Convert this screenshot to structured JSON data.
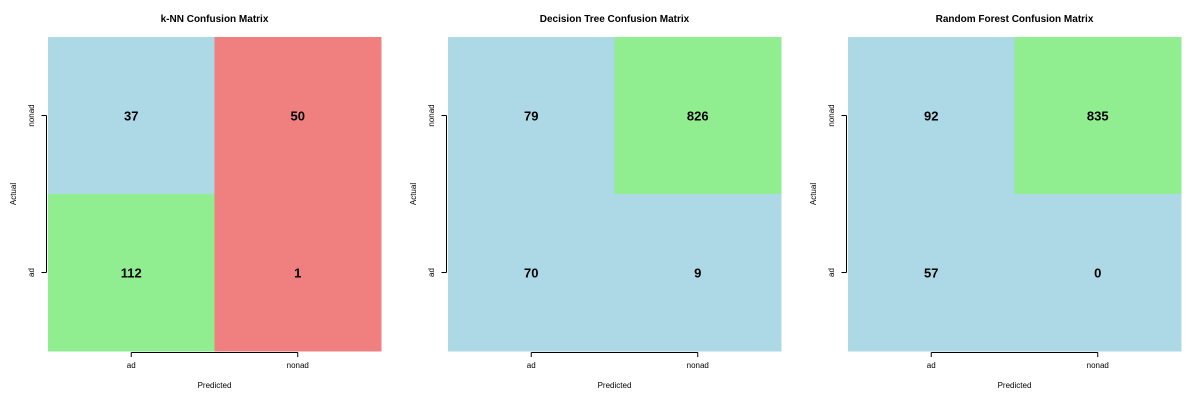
{
  "chart_data": [
    {
      "type": "heatmap",
      "title": "k-NN Confusion Matrix",
      "xlabel": "Predicted",
      "ylabel": "Actual",
      "x_categories": [
        "ad",
        "nonad"
      ],
      "y_categories": [
        "ad",
        "nonad"
      ],
      "cells": [
        {
          "actual": "nonad",
          "predicted": "ad",
          "value": 37,
          "color": "#add8e6"
        },
        {
          "actual": "nonad",
          "predicted": "nonad",
          "value": 50,
          "color": "#f08080"
        },
        {
          "actual": "ad",
          "predicted": "ad",
          "value": 112,
          "color": "#90ee90"
        },
        {
          "actual": "ad",
          "predicted": "nonad",
          "value": 1,
          "color": "#f08080"
        }
      ]
    },
    {
      "type": "heatmap",
      "title": "Decision Tree Confusion Matrix",
      "xlabel": "Predicted",
      "ylabel": "Actual",
      "x_categories": [
        "ad",
        "nonad"
      ],
      "y_categories": [
        "ad",
        "nonad"
      ],
      "cells": [
        {
          "actual": "nonad",
          "predicted": "ad",
          "value": 79,
          "color": "#add8e6"
        },
        {
          "actual": "nonad",
          "predicted": "nonad",
          "value": 826,
          "color": "#90ee90"
        },
        {
          "actual": "ad",
          "predicted": "ad",
          "value": 70,
          "color": "#add8e6"
        },
        {
          "actual": "ad",
          "predicted": "nonad",
          "value": 9,
          "color": "#add8e6"
        }
      ]
    },
    {
      "type": "heatmap",
      "title": "Random Forest Confusion Matrix",
      "xlabel": "Predicted",
      "ylabel": "Actual",
      "x_categories": [
        "ad",
        "nonad"
      ],
      "y_categories": [
        "ad",
        "nonad"
      ],
      "cells": [
        {
          "actual": "nonad",
          "predicted": "ad",
          "value": 92,
          "color": "#add8e6"
        },
        {
          "actual": "nonad",
          "predicted": "nonad",
          "value": 835,
          "color": "#90ee90"
        },
        {
          "actual": "ad",
          "predicted": "ad",
          "value": 57,
          "color": "#add8e6"
        },
        {
          "actual": "ad",
          "predicted": "nonad",
          "value": 0,
          "color": "#add8e6"
        }
      ]
    }
  ]
}
